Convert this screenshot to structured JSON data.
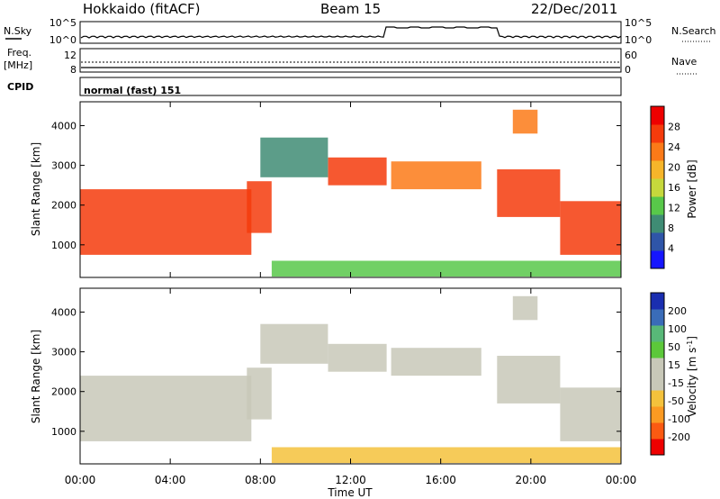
{
  "header": {
    "station": "Hokkaido (fitACF)",
    "beam": "Beam 15",
    "date": "22/Dec/2011"
  },
  "noise_panel": {
    "left_label": "N.Sky",
    "right_label": "N.Search",
    "left_ticks": [
      "10^5",
      "10^0"
    ],
    "right_ticks": [
      "10^5",
      "10^0"
    ]
  },
  "freq_panel": {
    "left_label_1": "Freq.",
    "left_label_2": "[MHz]",
    "left_ticks": [
      "12",
      "8"
    ],
    "right_label": "Nave",
    "right_ticks": [
      "60",
      "0"
    ]
  },
  "cpid_panel": {
    "label": "CPID",
    "mode_text": "normal (fast) 151"
  },
  "colors": {
    "power_scale": [
      "#1515ff",
      "#2f55a8",
      "#3f8c74",
      "#58c84a",
      "#c6d83c",
      "#f6b52a",
      "#fb7a18",
      "#f53b0c",
      "#ee0000"
    ],
    "velocity_scale": [
      "#ee0000",
      "#fb5a12",
      "#fb9a22",
      "#f4c23c",
      "#c8c8b8",
      "#c8c8b8",
      "#5cc83a",
      "#58b878",
      "#3a6cb8",
      "#1a2eb0"
    ],
    "frame": "#000000"
  },
  "chart_data": [
    {
      "type": "heatmap",
      "title": "",
      "xlabel": "Time UT",
      "ylabel": "Slant Range [km]",
      "x_ticks": [
        "00:00",
        "04:00",
        "08:00",
        "12:00",
        "16:00",
        "20:00",
        "00:00"
      ],
      "y_ticks": [
        "1000",
        "2000",
        "3000",
        "4000"
      ],
      "ylim": [
        180,
        4600
      ],
      "colorbar_label": "Power [dB]",
      "colorbar_ticks": [
        "4",
        "8",
        "12",
        "16",
        "20",
        "24",
        "28"
      ],
      "colorbar_range": [
        0,
        30
      ],
      "bands": [
        {
          "t_start": 0.0,
          "t_end": 7.6,
          "r_lo": 750,
          "r_hi": 2400,
          "level": 26
        },
        {
          "t_start": 7.4,
          "t_end": 8.5,
          "r_lo": 1300,
          "r_hi": 2600,
          "level": 24
        },
        {
          "t_start": 8.0,
          "t_end": 11.0,
          "r_lo": 2700,
          "r_hi": 3700,
          "level": 8
        },
        {
          "t_start": 11.0,
          "t_end": 13.6,
          "r_lo": 2500,
          "r_hi": 3200,
          "level": 26
        },
        {
          "t_start": 13.8,
          "t_end": 17.8,
          "r_lo": 2400,
          "r_hi": 3100,
          "level": 22
        },
        {
          "t_start": 18.5,
          "t_end": 21.3,
          "r_lo": 1700,
          "r_hi": 2900,
          "level": 26
        },
        {
          "t_start": 19.2,
          "t_end": 20.3,
          "r_lo": 3800,
          "r_hi": 4400,
          "level": 20
        },
        {
          "t_start": 21.3,
          "t_end": 24.0,
          "r_lo": 750,
          "r_hi": 2100,
          "level": 26
        },
        {
          "t_start": 8.5,
          "t_end": 24.0,
          "r_lo": 200,
          "r_hi": 600,
          "level": 12
        }
      ]
    },
    {
      "type": "heatmap",
      "title": "",
      "xlabel": "Time UT",
      "ylabel": "Slant Range [km]",
      "x_ticks": [
        "00:00",
        "04:00",
        "08:00",
        "12:00",
        "16:00",
        "20:00",
        "00:00"
      ],
      "y_ticks": [
        "1000",
        "2000",
        "3000",
        "4000"
      ],
      "ylim": [
        180,
        4600
      ],
      "colorbar_label": "Velocity [m s^-1]",
      "colorbar_ticks": [
        "200",
        "100",
        "50",
        "15",
        "-15",
        "-50",
        "-100",
        "-200"
      ],
      "colorbar_range": [
        -250,
        250
      ],
      "bands": [
        {
          "t_start": 0.0,
          "t_end": 7.6,
          "r_lo": 750,
          "r_hi": 2400,
          "level": 0
        },
        {
          "t_start": 7.4,
          "t_end": 8.5,
          "r_lo": 1300,
          "r_hi": 2600,
          "level": 0
        },
        {
          "t_start": 8.0,
          "t_end": 11.0,
          "r_lo": 2700,
          "r_hi": 3700,
          "level": -40
        },
        {
          "t_start": 11.0,
          "t_end": 13.6,
          "r_lo": 2500,
          "r_hi": 3200,
          "level": 0
        },
        {
          "t_start": 13.8,
          "t_end": 17.8,
          "r_lo": 2400,
          "r_hi": 3100,
          "level": 0
        },
        {
          "t_start": 18.5,
          "t_end": 21.3,
          "r_lo": 1700,
          "r_hi": 2900,
          "level": 0
        },
        {
          "t_start": 19.2,
          "t_end": 20.3,
          "r_lo": 3800,
          "r_hi": 4400,
          "level": 40
        },
        {
          "t_start": 21.3,
          "t_end": 24.0,
          "r_lo": 750,
          "r_hi": 2100,
          "level": 0
        },
        {
          "t_start": 8.5,
          "t_end": 24.0,
          "r_lo": 200,
          "r_hi": 600,
          "level": -60
        }
      ]
    }
  ]
}
